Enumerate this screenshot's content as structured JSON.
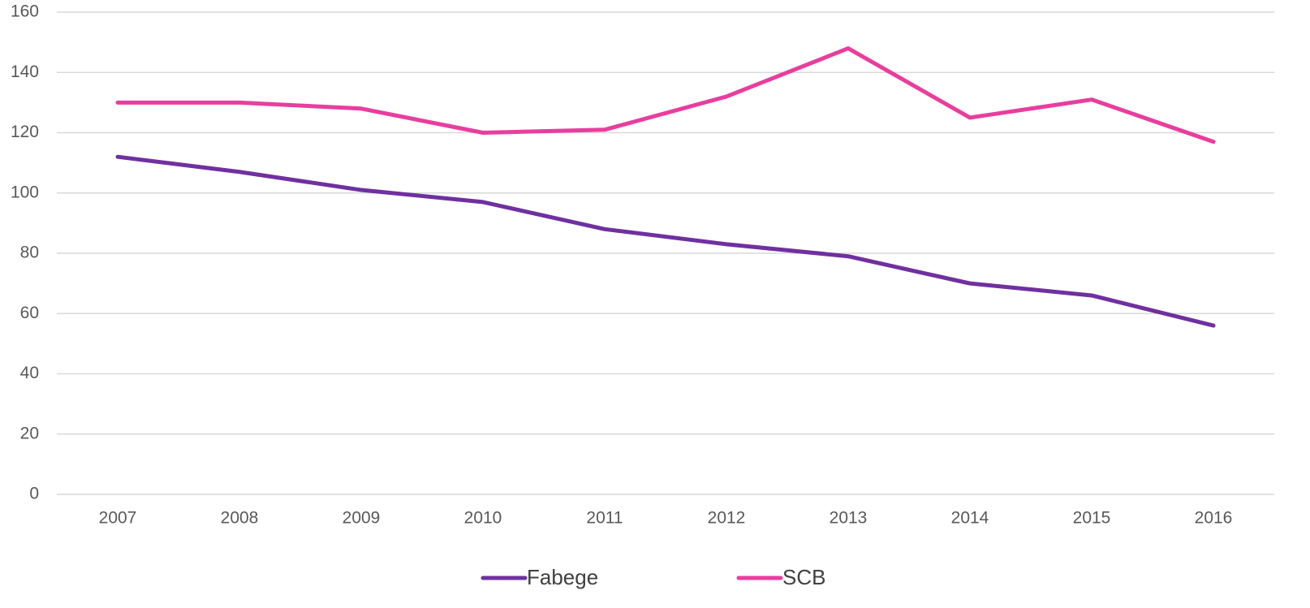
{
  "chart_data": {
    "type": "line",
    "categories": [
      "2007",
      "2008",
      "2009",
      "2010",
      "2011",
      "2012",
      "2013",
      "2014",
      "2015",
      "2016"
    ],
    "series": [
      {
        "name": "Fabege",
        "color": "#7030a0",
        "values": [
          112,
          107,
          101,
          97,
          88,
          83,
          79,
          70,
          66,
          56
        ]
      },
      {
        "name": "SCB",
        "color": "#e83e9e",
        "values": [
          130,
          130,
          128,
          120,
          121,
          132,
          148,
          125,
          131,
          117
        ]
      }
    ],
    "ylim": [
      0,
      160
    ],
    "yticks": [
      0,
      20,
      40,
      60,
      80,
      100,
      120,
      140,
      160
    ],
    "grid": true,
    "legend": "bottom"
  }
}
